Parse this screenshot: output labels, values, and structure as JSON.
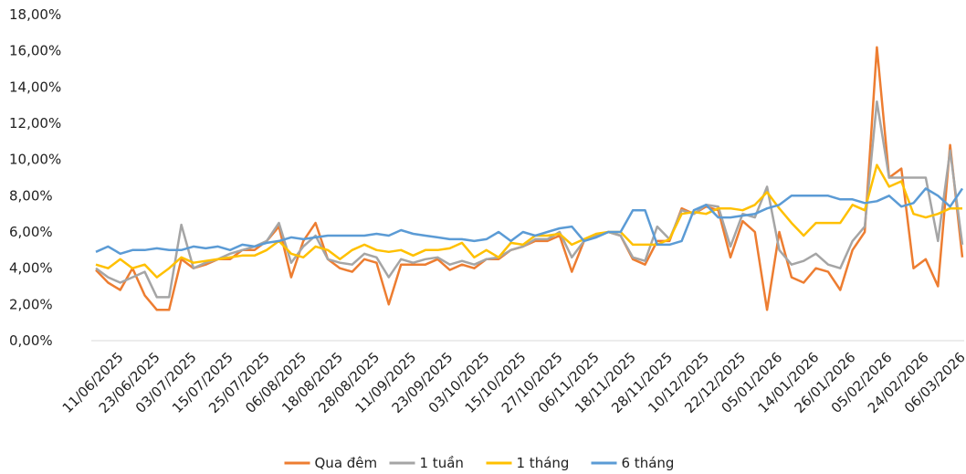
{
  "chart_data": {
    "type": "line",
    "categories": [
      null,
      null,
      "11/06/2025",
      null,
      null,
      "23/06/2025",
      null,
      null,
      "03/07/2025",
      null,
      null,
      "15/07/2025",
      null,
      null,
      "25/07/2025",
      null,
      null,
      "06/08/2025",
      null,
      null,
      "18/08/2025",
      null,
      null,
      "28/08/2025",
      null,
      null,
      "11/09/2025",
      null,
      null,
      "23/09/2025",
      null,
      null,
      "03/10/2025",
      null,
      null,
      "15/10/2025",
      null,
      null,
      "27/10/2025",
      null,
      null,
      "06/11/2025",
      null,
      null,
      "18/11/2025",
      null,
      null,
      "28/11/2025",
      null,
      null,
      "10/12/2025",
      null,
      null,
      "22/12/2025",
      null,
      null,
      "05/01/2026",
      null,
      null,
      "14/01/2026",
      null,
      null,
      "26/01/2026",
      null,
      null,
      "05/02/2026",
      null,
      null,
      "24/02/2026",
      null,
      null,
      "06/03/2026"
    ],
    "series": [
      {
        "name": "Qua đêm",
        "color": "#ED7D31",
        "values": [
          3.9,
          3.2,
          2.8,
          4.0,
          2.5,
          1.7,
          1.7,
          4.5,
          4.0,
          4.2,
          4.5,
          4.5,
          5.0,
          5.0,
          5.5,
          6.3,
          3.5,
          5.5,
          6.5,
          4.5,
          4.0,
          3.8,
          4.5,
          4.3,
          2.0,
          4.2,
          4.2,
          4.2,
          4.5,
          3.9,
          4.2,
          4.0,
          4.5,
          4.5,
          5.0,
          5.2,
          5.5,
          5.5,
          5.8,
          3.8,
          5.5,
          5.8,
          6.0,
          5.8,
          4.5,
          4.2,
          5.5,
          5.5,
          7.3,
          7.0,
          7.4,
          7.2,
          4.6,
          6.6,
          6.0,
          1.7,
          6.0,
          3.5,
          3.2,
          4.0,
          3.8,
          2.8,
          5.0,
          6.0,
          16.2,
          9.0,
          9.5,
          4.0,
          4.5,
          3.0,
          10.8,
          4.6
        ]
      },
      {
        "name": "1 tuần",
        "color": "#A5A5A5",
        "values": [
          4.0,
          3.5,
          3.2,
          3.5,
          3.8,
          2.4,
          2.4,
          6.4,
          4.0,
          4.3,
          4.5,
          4.8,
          5.0,
          5.2,
          5.5,
          6.5,
          4.3,
          5.2,
          5.8,
          4.5,
          4.3,
          4.2,
          4.8,
          4.6,
          3.5,
          4.5,
          4.3,
          4.5,
          4.6,
          4.2,
          4.4,
          4.2,
          4.5,
          4.6,
          5.0,
          5.2,
          5.6,
          5.6,
          6.0,
          4.6,
          5.5,
          5.8,
          6.0,
          5.8,
          4.6,
          4.4,
          6.3,
          5.6,
          7.2,
          7.0,
          7.5,
          7.4,
          5.2,
          7.0,
          6.8,
          8.5,
          5.0,
          4.2,
          4.4,
          4.8,
          4.2,
          4.0,
          5.5,
          6.3,
          13.2,
          9.0,
          9.0,
          9.0,
          9.0,
          5.5,
          10.5,
          5.3
        ]
      },
      {
        "name": "1 tháng",
        "color": "#FFC000",
        "values": [
          4.2,
          4.0,
          4.5,
          4.0,
          4.2,
          3.5,
          4.0,
          4.6,
          4.3,
          4.4,
          4.5,
          4.6,
          4.7,
          4.7,
          5.0,
          5.5,
          4.8,
          4.6,
          5.2,
          5.0,
          4.5,
          5.0,
          5.3,
          5.0,
          4.9,
          5.0,
          4.7,
          5.0,
          5.0,
          5.1,
          5.4,
          4.6,
          5.0,
          4.6,
          5.4,
          5.3,
          5.8,
          5.8,
          5.9,
          5.3,
          5.6,
          5.9,
          6.0,
          6.0,
          5.3,
          5.3,
          5.3,
          5.6,
          7.0,
          7.1,
          7.0,
          7.3,
          7.3,
          7.2,
          7.5,
          8.2,
          7.3,
          6.5,
          5.8,
          6.5,
          6.5,
          6.5,
          7.5,
          7.2,
          9.7,
          8.5,
          8.8,
          7.0,
          6.8,
          7.0,
          7.3,
          7.3
        ]
      },
      {
        "name": "6 tháng",
        "color": "#5B9BD5",
        "values": [
          4.9,
          5.2,
          4.8,
          5.0,
          5.0,
          5.1,
          5.0,
          5.0,
          5.2,
          5.1,
          5.2,
          5.0,
          5.3,
          5.2,
          5.4,
          5.5,
          5.7,
          5.6,
          5.7,
          5.8,
          5.8,
          5.8,
          5.8,
          5.9,
          5.8,
          6.1,
          5.9,
          5.8,
          5.7,
          5.6,
          5.6,
          5.5,
          5.6,
          6.0,
          5.5,
          6.0,
          5.8,
          6.0,
          6.2,
          6.3,
          5.5,
          5.7,
          6.0,
          6.0,
          7.2,
          7.2,
          5.3,
          5.3,
          5.5,
          7.2,
          7.5,
          6.8,
          6.8,
          6.9,
          7.0,
          7.3,
          7.5,
          8.0,
          8.0,
          8.0,
          8.0,
          7.8,
          7.8,
          7.6,
          7.7,
          8.0,
          7.4,
          7.6,
          8.4,
          8.0,
          7.4,
          8.4
        ]
      }
    ],
    "ylim": [
      0,
      18
    ],
    "yticks": [
      {
        "value": 0,
        "label": "0,00%"
      },
      {
        "value": 2,
        "label": "2,00%"
      },
      {
        "value": 4,
        "label": "4,00%"
      },
      {
        "value": 6,
        "label": "6,00%"
      },
      {
        "value": 8,
        "label": "8,00%"
      },
      {
        "value": 10,
        "label": "10,00%"
      },
      {
        "value": 12,
        "label": "12,00%"
      },
      {
        "value": 14,
        "label": "14,00%"
      },
      {
        "value": 16,
        "label": "16,00%"
      },
      {
        "value": 18,
        "label": "18,00%"
      }
    ],
    "grid": false,
    "legend": "bottom"
  }
}
